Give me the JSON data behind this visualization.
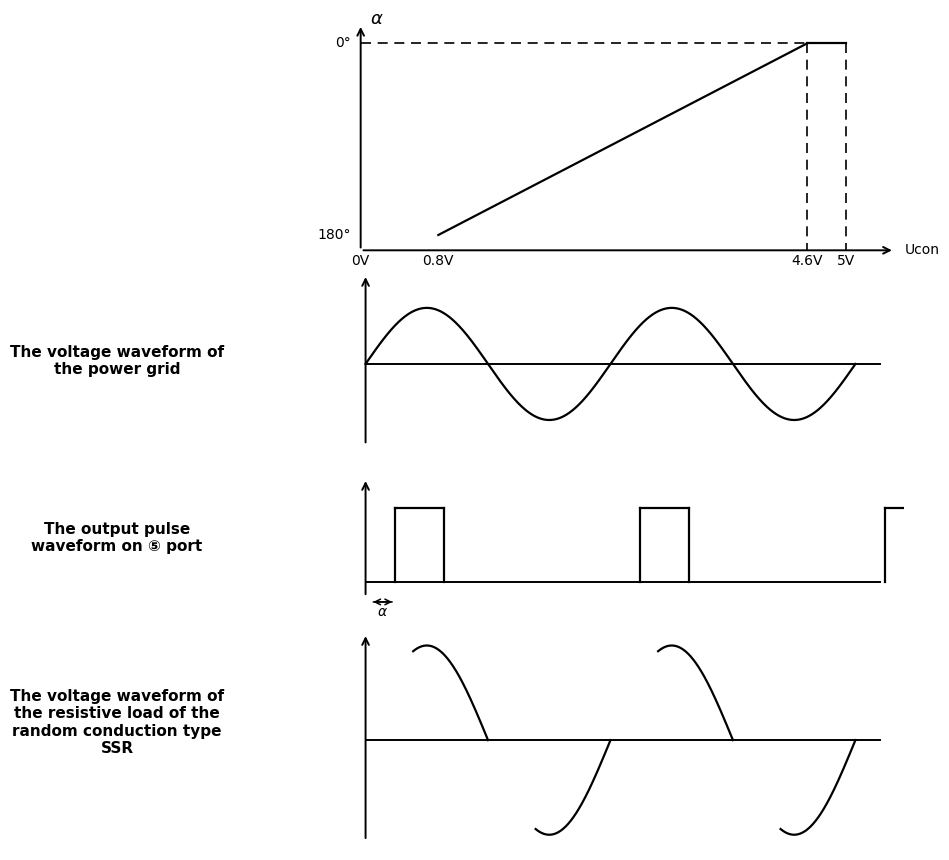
{
  "bg_color": "#ffffff",
  "line_color": "#000000",
  "fig_width": 8.7,
  "fig_height": 8.97,
  "panel1": {
    "ylabel_alpha": "α",
    "ylabel_0": "0°",
    "ylabel_180": "180°",
    "xlabel_vals": [
      "0V",
      "0.8V",
      "4.6V",
      "5V"
    ],
    "xlabel_label": "Ucon"
  },
  "panel2": {
    "label_line1": "The voltage waveform of",
    "label_line2": "the power grid"
  },
  "panel3": {
    "label_line1": "The output pulse",
    "label_line2": "waveform on ⑤ port",
    "alpha_label": "α"
  },
  "panel4": {
    "label_line1": "The voltage waveform of",
    "label_line2": "the resistive load of the",
    "label_line3": "random conduction type",
    "label_line4": "SSR"
  }
}
